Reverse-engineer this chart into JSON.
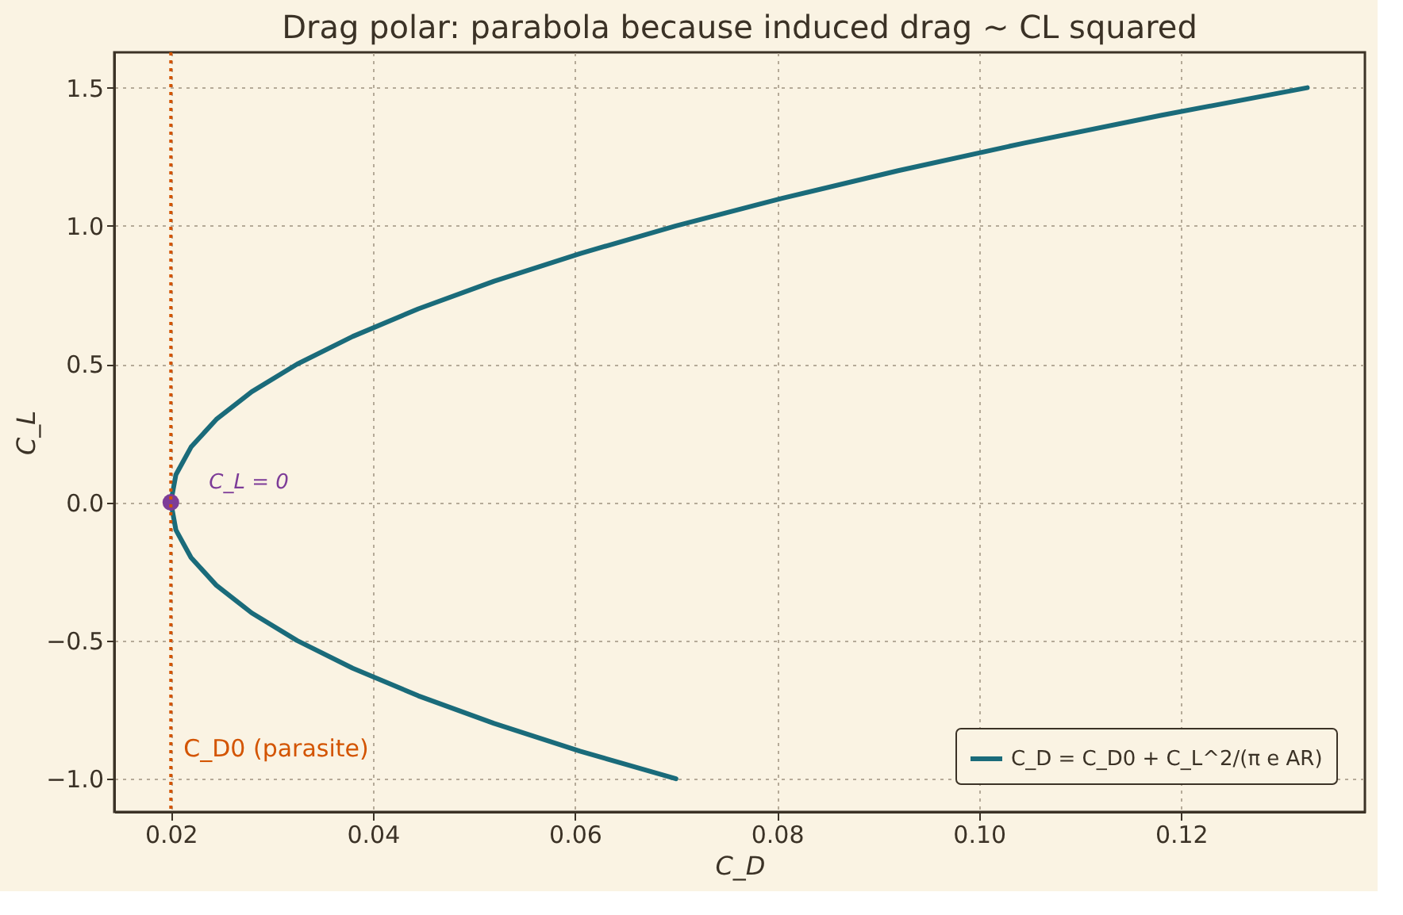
{
  "chart_data": {
    "type": "line",
    "title": "Drag polar: parabola because induced drag ~ CL squared",
    "xlabel": "C_D",
    "ylabel": "C_L",
    "xlim": [
      0.0144,
      0.1382
    ],
    "xticks": [
      {
        "value": 0.02,
        "label": "0.02"
      },
      {
        "value": 0.04,
        "label": "0.04"
      },
      {
        "value": 0.06,
        "label": "0.06"
      },
      {
        "value": 0.08,
        "label": "0.08"
      },
      {
        "value": 0.1,
        "label": "0.10"
      },
      {
        "value": 0.12,
        "label": "0.12"
      }
    ],
    "ylim": [
      -1.12,
      1.628
    ],
    "yticks": [
      {
        "value": -1,
        "label": "−1.0"
      },
      {
        "value": -0.5,
        "label": "−0.5"
      },
      {
        "value": 0,
        "label": "0.0"
      },
      {
        "value": 0.5,
        "label": "0.5"
      },
      {
        "value": 1,
        "label": "1.0"
      },
      {
        "value": 1.5,
        "label": "1.5"
      }
    ],
    "grid": true,
    "legend": "bottom right",
    "series": [
      {
        "name": "C_D = C_D0 + C_L^2/(π e AR)",
        "color": "#1a6b7a",
        "marker": "none",
        "line_style": "solid",
        "x": [
          0.07,
          0.0605,
          0.052,
          0.0445,
          0.038,
          0.0325,
          0.028,
          0.0245,
          0.022,
          0.0205,
          0.02,
          0.0205,
          0.022,
          0.0245,
          0.028,
          0.0325,
          0.038,
          0.0445,
          0.052,
          0.0605,
          0.07,
          0.0805,
          0.092,
          0.1045,
          0.118,
          0.1325
        ],
        "values": [
          -1.0,
          -0.9,
          -0.8,
          -0.7,
          -0.6,
          -0.5,
          -0.4,
          -0.3,
          -0.2,
          -0.1,
          0.0,
          0.1,
          0.2,
          0.3,
          0.4,
          0.5,
          0.6,
          0.7,
          0.8,
          0.9,
          1.0,
          1.1,
          1.2,
          1.3,
          1.4,
          1.5
        ]
      },
      {
        "type": "scatter",
        "color": "#7d3c98",
        "marker": "circle",
        "x": [
          0.02
        ],
        "values": [
          0.0
        ]
      }
    ],
    "ref_lines": [
      {
        "axis": "x",
        "value": 0.02,
        "label": "C_D0 (parasite)",
        "color": "#d35400",
        "line_style": "dotted"
      }
    ],
    "annotations": [
      {
        "text": "C_L = 0",
        "x": 0.02,
        "y": 0.0
      }
    ]
  }
}
